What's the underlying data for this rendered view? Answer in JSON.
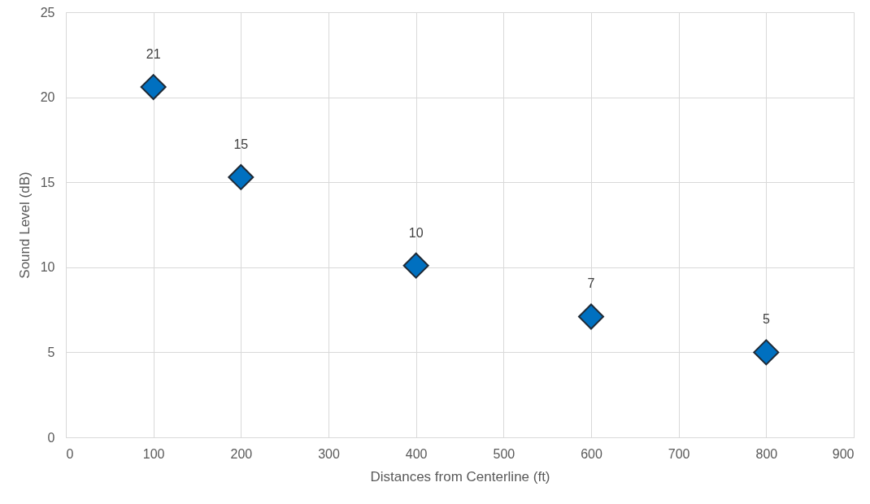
{
  "chart_data": {
    "type": "scatter",
    "xlabel": "Distances from Centerline (ft)",
    "ylabel": "Sound Level (dB)",
    "x": [
      100,
      200,
      400,
      600,
      800
    ],
    "series": [
      {
        "color": "#0070c0",
        "values": [
          20.6,
          15.3,
          10.1,
          7.1,
          5.0
        ],
        "value_labels": [
          "21",
          "15",
          "10",
          "7",
          "5"
        ]
      }
    ],
    "xlim": [
      0,
      900
    ],
    "xticks": [
      0,
      100,
      200,
      300,
      400,
      500,
      600,
      700,
      800,
      900
    ],
    "ylim": [
      0,
      25
    ],
    "yticks": [
      0,
      5,
      10,
      15,
      20,
      25
    ],
    "grid": true,
    "marker": "diamond"
  }
}
